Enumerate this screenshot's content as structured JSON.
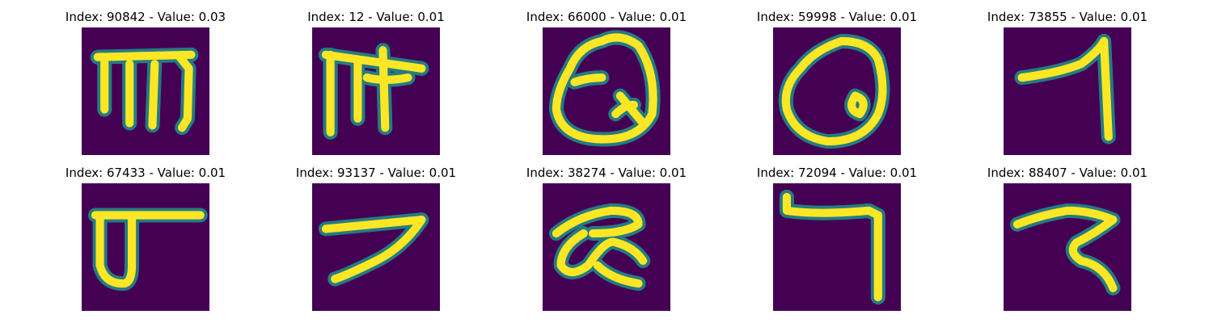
{
  "image_background_color": "#440154",
  "stroke_colors": [
    "#fde725",
    "#21918c",
    "#3b528b"
  ],
  "panels": [
    {
      "title": "Index: 90842 - Value: 0.03",
      "glyph": "devanagari-like handwritten character resembling m"
    },
    {
      "title": "Index: 12 - Value: 0.01",
      "glyph": "devanagari-like handwritten character with top bar"
    },
    {
      "title": "Index: 66000 - Value: 0.01",
      "glyph": "looped handwritten character"
    },
    {
      "title": "Index: 59998 - Value: 0.01",
      "glyph": "looped handwritten character"
    },
    {
      "title": "Index: 73855 - Value: 0.01",
      "glyph": "handwritten character resembling 7"
    },
    {
      "title": "Index: 67433 - Value: 0.01",
      "glyph": "handwritten character with bar and U-shape"
    },
    {
      "title": "Index: 93137 - Value: 0.01",
      "glyph": "handwritten character resembling 7"
    },
    {
      "title": "Index: 38274 - Value: 0.01",
      "glyph": "handwritten looped character"
    },
    {
      "title": "Index: 72094 - Value: 0.01",
      "glyph": "handwritten character resembling 7"
    },
    {
      "title": "Index: 88407 - Value: 0.01",
      "glyph": "handwritten character resembling z"
    }
  ]
}
